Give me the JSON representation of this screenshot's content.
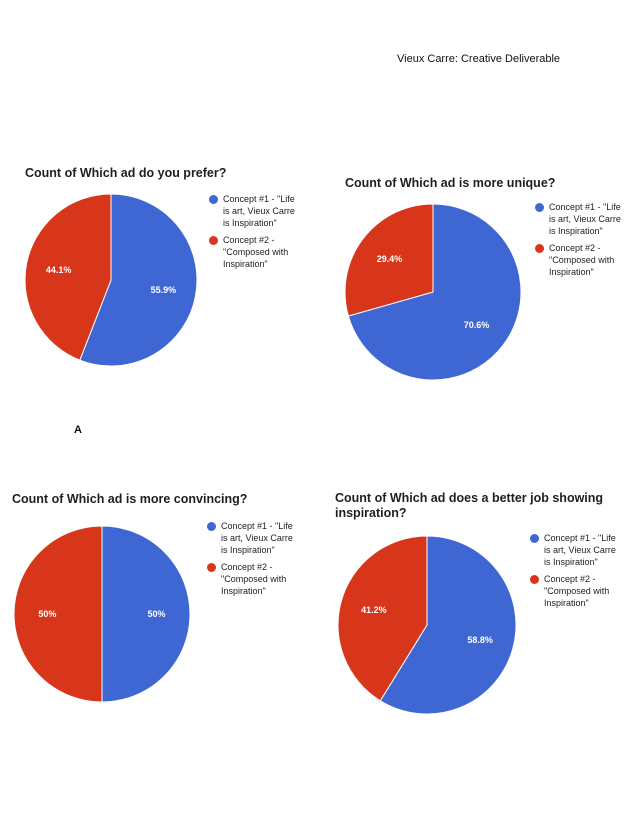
{
  "header": {
    "text": "Vieux  Carre: Creative Deliverable"
  },
  "marker": {
    "text": "A"
  },
  "colors": {
    "concept1": "#3f67d3",
    "concept2": "#d8361b",
    "border": "#ffffff"
  },
  "legend_labels": [
    "Concept #1 - \"Life\nis art, Vieux Carre\nis Inspiration\"",
    "Concept #2 -\n\"Composed with\nInspiration\""
  ],
  "chart_data": [
    {
      "type": "pie",
      "title": "Count of Which ad do you prefer?",
      "categories": [
        "Concept #1 - \"Life is art, Vieux Carre is Inspiration\"",
        "Concept #2 - \"Composed with Inspiration\""
      ],
      "values": [
        55.9,
        44.1
      ],
      "labels": [
        "55.9%",
        "44.1%"
      ],
      "legend_placement": "right"
    },
    {
      "type": "pie",
      "title": "Count of Which ad is more unique?",
      "categories": [
        "Concept #1 - \"Life is Art, Vieux Carre is Inspiration\"",
        "Concept #2 - \"Composed with Inspiration\""
      ],
      "values": [
        70.6,
        29.4
      ],
      "labels": [
        "70.6%",
        "29.4%"
      ],
      "legend_placement": "right"
    },
    {
      "type": "pie",
      "title": "Count of Which ad is more convincing?",
      "categories": [
        "Concept #1 - \"Life is art, Vieux Carre is Inspiration\"",
        "Concept #2 - \"Composed with Inspiration\""
      ],
      "values": [
        50,
        50
      ],
      "labels": [
        "50%",
        "50%"
      ],
      "legend_placement": "right"
    },
    {
      "type": "pie",
      "title": "Count of Which ad does a better job showing\ninspiration?",
      "categories": [
        "Concept #1 - \"Life is Art, Vieux Carre is Inspiration\"",
        "Concept #2 - \"Composed with Inspiration\""
      ],
      "values": [
        58.8,
        41.2
      ],
      "labels": [
        "58.8%",
        "41.2%"
      ],
      "legend_placement": "right"
    }
  ]
}
